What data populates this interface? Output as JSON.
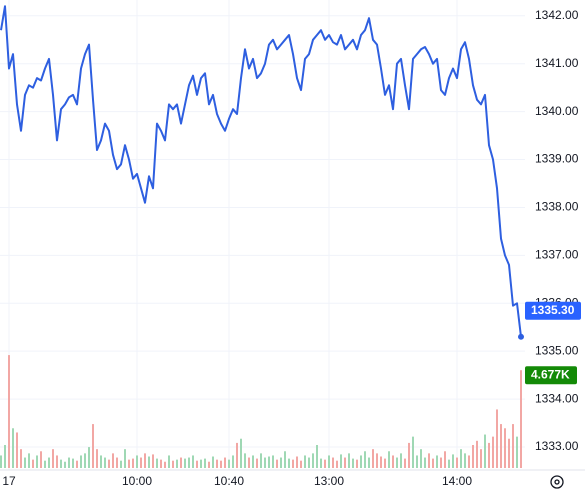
{
  "chart_data": {
    "type": "line",
    "categories": [
      null,
      null,
      "17",
      null,
      null,
      null,
      null,
      null,
      null,
      null,
      null,
      null,
      null,
      null,
      null,
      null,
      null,
      null,
      null,
      null,
      null,
      null,
      null,
      null,
      null,
      null,
      null,
      null,
      null,
      null,
      null,
      null,
      null,
      null,
      "10:00",
      null,
      null,
      null,
      null,
      null,
      null,
      null,
      null,
      null,
      null,
      null,
      null,
      null,
      null,
      null,
      null,
      null,
      null,
      null,
      null,
      null,
      null,
      "10:40",
      null,
      null,
      null,
      null,
      null,
      null,
      null,
      null,
      null,
      null,
      null,
      null,
      null,
      null,
      null,
      null,
      null,
      null,
      null,
      null,
      null,
      null,
      null,
      null,
      "13:00",
      null,
      null,
      null,
      null,
      null,
      null,
      null,
      null,
      null,
      null,
      null,
      null,
      null,
      null,
      null,
      null,
      null,
      null,
      null,
      null,
      null,
      null,
      null,
      null,
      null,
      null,
      null,
      null,
      null,
      null,
      null,
      "14:00",
      null,
      null,
      null,
      null,
      null,
      null,
      null,
      null,
      null,
      null,
      null,
      null,
      null,
      null,
      null,
      null
    ],
    "series": [
      {
        "color": "#2e5fe0",
        "label_color": "#2962ff",
        "values": [
          1341.7,
          1342.2,
          1340.9,
          1341.2,
          1340.15,
          1339.6,
          1340.35,
          1340.55,
          1340.5,
          1340.7,
          1340.65,
          1340.9,
          1341.1,
          1340.35,
          1339.4,
          1340.05,
          1340.15,
          1340.3,
          1340.35,
          1340.15,
          1340.9,
          1341.2,
          1341.4,
          1340.25,
          1339.2,
          1339.4,
          1339.75,
          1339.6,
          1339.1,
          1338.8,
          1338.9,
          1339.3,
          1339.0,
          1338.6,
          1338.7,
          1338.4,
          1338.1,
          1338.65,
          1338.4,
          1339.75,
          1339.6,
          1339.4,
          1340.15,
          1340.05,
          1340.15,
          1339.75,
          1340.15,
          1340.55,
          1340.75,
          1340.35,
          1340.7,
          1340.8,
          1340.15,
          1340.35,
          1339.95,
          1339.75,
          1339.6,
          1339.85,
          1340.05,
          1339.95,
          1340.7,
          1341.3,
          1340.9,
          1341.1,
          1340.7,
          1340.8,
          1341.0,
          1341.4,
          1341.5,
          1341.3,
          1341.4,
          1341.5,
          1341.6,
          1341.2,
          1340.7,
          1340.45,
          1341.1,
          1341.2,
          1341.5,
          1341.6,
          1341.7,
          1341.5,
          1341.6,
          1341.45,
          1341.4,
          1341.6,
          1341.3,
          1341.4,
          1341.5,
          1341.3,
          1341.6,
          1341.7,
          1341.95,
          1341.5,
          1341.4,
          1340.9,
          1340.35,
          1340.55,
          1340.05,
          1341.0,
          1341.1,
          1340.55,
          1340.05,
          1341.1,
          1341.2,
          1341.3,
          1341.35,
          1341.2,
          1341.0,
          1341.1,
          1340.45,
          1340.35,
          1340.7,
          1340.9,
          1340.7,
          1341.3,
          1341.45,
          1341.1,
          1340.55,
          1340.25,
          1340.15,
          1340.35,
          1339.3,
          1339.0,
          1338.4,
          1337.35,
          1337.0,
          1336.8,
          1335.95,
          1336.0,
          1335.3
        ],
        "value_labels": [
          null,
          null,
          null,
          null,
          null,
          null,
          null,
          null,
          null,
          null,
          null,
          null,
          null,
          null,
          null,
          null,
          null,
          null,
          null,
          null,
          null,
          null,
          null,
          null,
          null,
          null,
          null,
          null,
          null,
          null,
          null,
          null,
          null,
          null,
          null,
          null,
          null,
          null,
          null,
          null,
          null,
          null,
          null,
          null,
          null,
          null,
          null,
          null,
          null,
          null,
          null,
          null,
          null,
          null,
          null,
          null,
          null,
          null,
          null,
          null,
          null,
          null,
          null,
          null,
          null,
          null,
          null,
          null,
          null,
          null,
          null,
          null,
          null,
          null,
          null,
          null,
          null,
          null,
          null,
          null,
          null,
          null,
          null,
          null,
          null,
          null,
          null,
          null,
          null,
          null,
          null,
          null,
          null,
          null,
          null,
          null,
          null,
          null,
          null,
          null,
          null,
          null,
          null,
          null,
          null,
          null,
          null,
          null,
          null,
          null,
          null,
          null,
          null,
          null,
          null,
          null,
          null,
          null,
          null,
          null,
          null,
          null,
          null,
          null,
          null,
          null,
          null,
          null,
          null,
          null,
          "1335.30"
        ]
      },
      {
        "type": "bar",
        "axis": "y2",
        "up_color": "#9fd8b4",
        "down_color": "#f2a7a4",
        "label_color": "#138a07",
        "values": [
          600,
          1100,
          5400,
          1900,
          1700,
          900,
          500,
          700,
          400,
          600,
          800,
          350,
          500,
          900,
          600,
          400,
          300,
          500,
          450,
          350,
          600,
          700,
          1000,
          2100,
          900,
          600,
          500,
          400,
          700,
          500,
          350,
          900,
          400,
          450,
          600,
          500,
          700,
          550,
          650,
          450,
          400,
          300,
          600,
          350,
          400,
          500,
          450,
          500,
          600,
          350,
          400,
          450,
          300,
          550,
          400,
          350,
          500,
          400,
          600,
          1200,
          1400,
          700,
          500,
          600,
          450,
          700,
          500,
          550,
          600,
          400,
          500,
          800,
          450,
          400,
          550,
          350,
          600,
          500,
          700,
          1100,
          450,
          400,
          600,
          500,
          350,
          650,
          500,
          700,
          450,
          400,
          600,
          800,
          500,
          900,
          700,
          550,
          450,
          800,
          600,
          500,
          700,
          450,
          1200,
          1500,
          600,
          900,
          500,
          700,
          450,
          600,
          500,
          800,
          400,
          650,
          500,
          900,
          700,
          600,
          1100,
          1300,
          900,
          1600,
          1200,
          1500,
          2800,
          2100,
          1900,
          1400,
          2100,
          1500,
          4677
        ],
        "value_labels": [
          null,
          null,
          null,
          null,
          null,
          null,
          null,
          null,
          null,
          null,
          null,
          null,
          null,
          null,
          null,
          null,
          null,
          null,
          null,
          null,
          null,
          null,
          null,
          null,
          null,
          null,
          null,
          null,
          null,
          null,
          null,
          null,
          null,
          null,
          null,
          null,
          null,
          null,
          null,
          null,
          null,
          null,
          null,
          null,
          null,
          null,
          null,
          null,
          null,
          null,
          null,
          null,
          null,
          null,
          null,
          null,
          null,
          null,
          null,
          null,
          null,
          null,
          null,
          null,
          null,
          null,
          null,
          null,
          null,
          null,
          null,
          null,
          null,
          null,
          null,
          null,
          null,
          null,
          null,
          null,
          null,
          null,
          null,
          null,
          null,
          null,
          null,
          null,
          null,
          null,
          null,
          null,
          null,
          null,
          null,
          null,
          null,
          null,
          null,
          null,
          null,
          null,
          null,
          null,
          null,
          null,
          null,
          null,
          null,
          null,
          null,
          null,
          null,
          null,
          null,
          null,
          null,
          null,
          null,
          null,
          null,
          null,
          null,
          null,
          null,
          null,
          null,
          null,
          null,
          null,
          "4.677K"
        ]
      }
    ],
    "ylim": [
      1332.52,
      1342.33
    ],
    "yticks": [
      {
        "value": 1333,
        "label": "1333.00"
      },
      {
        "value": 1334,
        "label": "1334.00"
      },
      {
        "value": 1335,
        "label": "1335.00"
      },
      {
        "value": 1336,
        "label": "1336.00"
      },
      {
        "value": 1337,
        "label": "1337.00"
      },
      {
        "value": 1338,
        "label": "1338.00"
      },
      {
        "value": 1339,
        "label": "1339.00"
      },
      {
        "value": 1340,
        "label": "1340.00"
      },
      {
        "value": 1341,
        "label": "1341.00"
      },
      {
        "value": 1342,
        "label": "1342.00"
      }
    ],
    "y2lim": [
      0,
      5500
    ],
    "grid": true
  }
}
